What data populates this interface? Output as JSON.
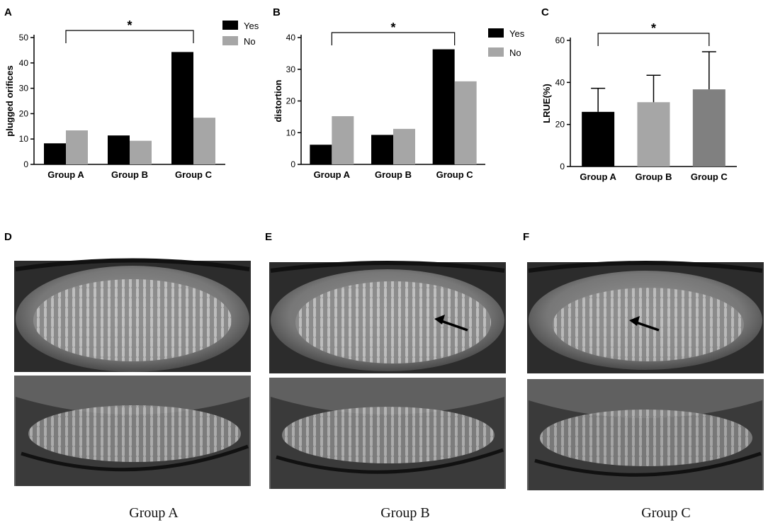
{
  "panels": {
    "a": "A",
    "b": "B",
    "c": "C",
    "d": "D",
    "e": "E",
    "f": "F"
  },
  "photo_captions": [
    "Group A",
    "Group B",
    "Group C"
  ],
  "chart_data": [
    {
      "type": "bar",
      "panel": "A",
      "categories": [
        "Group A",
        "Group B",
        "Group C"
      ],
      "series": [
        {
          "name": "Yes",
          "values": [
            8.3,
            11.4,
            44.3
          ],
          "color": "#000000"
        },
        {
          "name": "No",
          "values": [
            13.4,
            9.3,
            18.4
          ],
          "color": "#a6a6a6"
        }
      ],
      "ylabel": "plugged orifices",
      "ylim": [
        0,
        50
      ],
      "yticks": [
        0,
        10,
        20,
        30,
        40,
        50
      ],
      "significance": {
        "from": 0,
        "to": 2,
        "label": "*"
      },
      "legend": "top-right"
    },
    {
      "type": "bar",
      "panel": "B",
      "categories": [
        "Group A",
        "Group B",
        "Group C"
      ],
      "series": [
        {
          "name": "Yes",
          "values": [
            6.2,
            9.3,
            36.3
          ],
          "color": "#000000"
        },
        {
          "name": "No",
          "values": [
            15.2,
            11.2,
            26.2
          ],
          "color": "#a6a6a6"
        }
      ],
      "ylabel": "distortion",
      "ylim": [
        0,
        40
      ],
      "yticks": [
        0,
        10,
        20,
        30,
        40
      ],
      "significance": {
        "from": 0,
        "to": 2,
        "label": "*"
      },
      "legend": "top-right"
    },
    {
      "type": "bar",
      "panel": "C",
      "categories": [
        "Group A",
        "Group B",
        "Group C"
      ],
      "values": [
        26,
        30.6,
        36.7
      ],
      "errors": [
        11.2,
        12.8,
        17.9
      ],
      "colors": [
        "#000000",
        "#a6a6a6",
        "#808080"
      ],
      "ylabel": "LRUE(%)",
      "ylim": [
        0,
        60
      ],
      "yticks": [
        0,
        20,
        40,
        60
      ],
      "significance": {
        "from": 0,
        "to": 2,
        "label": "*"
      }
    }
  ]
}
